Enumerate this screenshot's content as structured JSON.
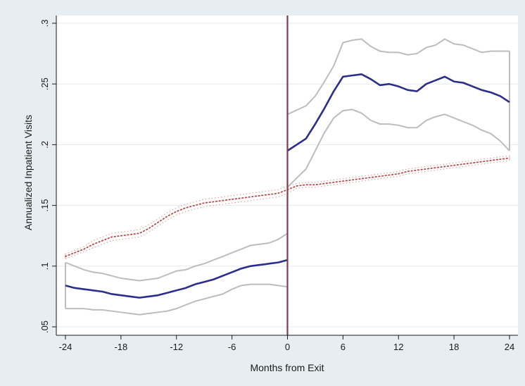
{
  "chart_data": {
    "type": "line",
    "title": "",
    "xlabel": "Months from Exit",
    "ylabel": "Annualized Inpatient Visits",
    "xlim": [
      -24,
      24
    ],
    "ylim": [
      0.05,
      0.3
    ],
    "xticks": [
      -24,
      -18,
      -12,
      -6,
      0,
      6,
      12,
      18,
      24
    ],
    "xtick_labels": [
      "-24",
      "-18",
      "-12",
      "-6",
      "0",
      "6",
      "12",
      "18",
      "24"
    ],
    "yticks": [
      0.05,
      0.1,
      0.15,
      0.2,
      0.25,
      0.3
    ],
    "ytick_labels": [
      ".05",
      ".1",
      ".15",
      ".2",
      ".25",
      ".3"
    ],
    "grid": "horizontal",
    "legend": "none",
    "reference_line": {
      "x": 0,
      "color": "#8b3a4a"
    },
    "x": [
      -24,
      -23,
      -22,
      -21,
      -20,
      -19,
      -18,
      -17,
      -16,
      -15,
      -14,
      -13,
      -12,
      -11,
      -10,
      -9,
      -8,
      -7,
      -6,
      -5,
      -4,
      -3,
      -2,
      -1,
      0,
      1,
      2,
      3,
      4,
      5,
      6,
      7,
      8,
      9,
      10,
      11,
      12,
      13,
      14,
      15,
      16,
      17,
      18,
      19,
      20,
      21,
      22,
      23,
      24
    ],
    "series": [
      {
        "style": "solid",
        "color": "#2b2e8c",
        "values": [
          0.084,
          0.082,
          0.081,
          0.08,
          0.079,
          0.077,
          0.076,
          0.075,
          0.074,
          0.075,
          0.076,
          0.078,
          0.08,
          0.082,
          0.085,
          0.087,
          0.089,
          0.092,
          0.095,
          0.098,
          0.1,
          0.101,
          0.102,
          0.103,
          0.105,
          0.195,
          0.205,
          0.217,
          0.23,
          0.244,
          0.256,
          0.257,
          0.258,
          0.254,
          0.249,
          0.25,
          0.248,
          0.245,
          0.244,
          0.25,
          0.253,
          0.256,
          0.252,
          0.251,
          0.248,
          0.245,
          0.243,
          0.24,
          0.235
        ],
        "ci_low": [
          0.065,
          0.065,
          0.065,
          0.064,
          0.064,
          0.063,
          0.062,
          0.061,
          0.06,
          0.061,
          0.062,
          0.063,
          0.065,
          0.068,
          0.071,
          0.073,
          0.075,
          0.077,
          0.081,
          0.084,
          0.085,
          0.085,
          0.085,
          0.084,
          0.083,
          0.165,
          0.18,
          0.195,
          0.21,
          0.222,
          0.228,
          0.229,
          0.226,
          0.22,
          0.217,
          0.217,
          0.216,
          0.214,
          0.214,
          0.22,
          0.223,
          0.225,
          0.222,
          0.219,
          0.216,
          0.212,
          0.209,
          0.203,
          0.195
        ],
        "ci_high": [
          0.103,
          0.1,
          0.097,
          0.095,
          0.094,
          0.092,
          0.09,
          0.089,
          0.088,
          0.089,
          0.09,
          0.093,
          0.096,
          0.097,
          0.1,
          0.102,
          0.105,
          0.108,
          0.111,
          0.114,
          0.117,
          0.118,
          0.119,
          0.122,
          0.127,
          0.225,
          0.232,
          0.24,
          0.252,
          0.265,
          0.284,
          0.286,
          0.287,
          0.281,
          0.277,
          0.276,
          0.276,
          0.274,
          0.275,
          0.28,
          0.282,
          0.287,
          0.283,
          0.282,
          0.279,
          0.276,
          0.277,
          0.277,
          0.277
        ]
      },
      {
        "style": "dotted",
        "color": "#b84a4a",
        "values": [
          0.108,
          0.111,
          0.114,
          0.118,
          0.121,
          0.124,
          0.125,
          0.126,
          0.127,
          0.131,
          0.136,
          0.141,
          0.145,
          0.148,
          0.15,
          0.152,
          0.153,
          0.154,
          0.155,
          0.156,
          0.157,
          0.158,
          0.159,
          0.16,
          0.163,
          0.166,
          0.167,
          0.167,
          0.168,
          0.169,
          0.17,
          0.171,
          0.172,
          0.173,
          0.174,
          0.175,
          0.176,
          0.178,
          0.179,
          0.18,
          0.181,
          0.182,
          0.183,
          0.184,
          0.185,
          0.186,
          0.187,
          0.188,
          0.189
        ],
        "ci_low": [
          0.106,
          0.109,
          0.112,
          0.115,
          0.118,
          0.121,
          0.122,
          0.123,
          0.124,
          0.128,
          0.133,
          0.138,
          0.142,
          0.145,
          0.147,
          0.149,
          0.15,
          0.151,
          0.152,
          0.153,
          0.154,
          0.155,
          0.156,
          0.157,
          0.16,
          0.164,
          0.165,
          0.165,
          0.166,
          0.167,
          0.168,
          0.169,
          0.17,
          0.171,
          0.172,
          0.173,
          0.174,
          0.176,
          0.177,
          0.178,
          0.179,
          0.18,
          0.181,
          0.182,
          0.183,
          0.184,
          0.185,
          0.186,
          0.187
        ],
        "ci_high": [
          0.11,
          0.113,
          0.116,
          0.121,
          0.124,
          0.127,
          0.128,
          0.129,
          0.13,
          0.134,
          0.139,
          0.144,
          0.148,
          0.151,
          0.153,
          0.155,
          0.156,
          0.157,
          0.158,
          0.159,
          0.16,
          0.161,
          0.162,
          0.163,
          0.166,
          0.168,
          0.169,
          0.169,
          0.17,
          0.171,
          0.172,
          0.173,
          0.174,
          0.175,
          0.176,
          0.177,
          0.178,
          0.18,
          0.181,
          0.182,
          0.183,
          0.184,
          0.185,
          0.186,
          0.187,
          0.188,
          0.189,
          0.19,
          0.191
        ]
      }
    ],
    "colors": {
      "background": "#e7eef1",
      "plot_background": "#ffffff",
      "grid": "#e6eaec",
      "ci_band": "#bdbdbd",
      "axis": "#1a1a1a"
    }
  }
}
